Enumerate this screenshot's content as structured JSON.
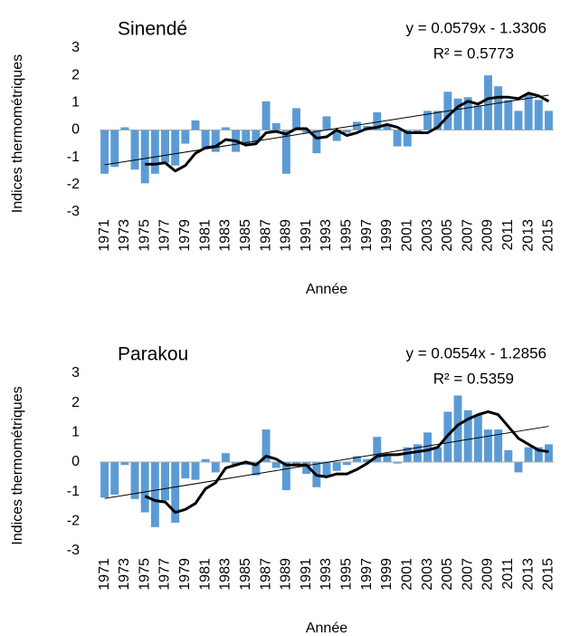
{
  "chart_data": [
    {
      "type": "bar",
      "title": "Sinendé",
      "ylabel": "Indices thermométriques",
      "xlabel": "Année",
      "categories": [
        "1971",
        null,
        "1973",
        null,
        "1975",
        null,
        "1977",
        null,
        "1979",
        null,
        "1981",
        null,
        "1983",
        null,
        "1985",
        null,
        "1987",
        null,
        "1989",
        null,
        "1991",
        null,
        "1993",
        null,
        "1995",
        null,
        "1997",
        null,
        "1999",
        null,
        "2001",
        null,
        "2003",
        null,
        "2005",
        null,
        "2007",
        null,
        "2009",
        null,
        "2011",
        null,
        "2013",
        null,
        "2015"
      ],
      "values": [
        -1.6,
        -1.35,
        0.1,
        -1.45,
        -1.95,
        -1.6,
        -1.2,
        -1.3,
        -0.5,
        0.35,
        -0.65,
        -0.8,
        0.1,
        -0.8,
        -0.5,
        -0.45,
        1.05,
        0.25,
        -1.6,
        0.8,
        -0.1,
        -0.85,
        0.5,
        -0.4,
        -0.1,
        0.3,
        0.15,
        0.65,
        0.15,
        -0.6,
        -0.6,
        -0.1,
        0.7,
        0.7,
        1.4,
        1.15,
        1.2,
        0.9,
        2.0,
        1.6,
        1.1,
        0.7,
        1.3,
        1.1,
        0.7
      ],
      "line_values": [
        null,
        null,
        null,
        null,
        -1.25,
        -1.25,
        -1.2,
        -1.5,
        -1.3,
        -0.85,
        -0.65,
        -0.6,
        -0.35,
        -0.4,
        -0.55,
        -0.5,
        -0.1,
        -0.05,
        -0.15,
        0.05,
        0.05,
        -0.3,
        -0.25,
        0,
        -0.2,
        -0.1,
        0.05,
        0.1,
        0.2,
        0.1,
        -0.1,
        -0.1,
        -0.1,
        0.1,
        0.5,
        0.85,
        1.05,
        0.95,
        1.15,
        1.2,
        1.2,
        1.15,
        1.35,
        1.25,
        1.05
      ],
      "trend": {
        "label": "y = 0.0579x - 1.3306",
        "slope": 0.0579,
        "intercept": -1.3306,
        "r2_label": "R² = 0.5773"
      },
      "color": "#5b9bd5",
      "line_color": "#000000",
      "ylim": [
        -3,
        3
      ],
      "yticks": [
        -3,
        -2,
        -1,
        0,
        1,
        2,
        3
      ]
    },
    {
      "type": "bar",
      "title": "Parakou",
      "ylabel": "Indices thermométriques",
      "xlabel": "Année",
      "categories": [
        "1971",
        null,
        "1973",
        null,
        "1975",
        null,
        "1977",
        null,
        "1979",
        null,
        "1981",
        null,
        "1983",
        null,
        "1985",
        null,
        "1987",
        null,
        "1989",
        null,
        "1991",
        null,
        "1993",
        null,
        "1995",
        null,
        "1997",
        null,
        "1999",
        null,
        "2001",
        null,
        "2003",
        null,
        "2005",
        null,
        "2007",
        null,
        "2009",
        null,
        "2011",
        null,
        "2013",
        null,
        "2015"
      ],
      "values": [
        -1.2,
        -1.1,
        -0.1,
        -1.25,
        -1.7,
        -2.2,
        -1.3,
        -2.05,
        -0.55,
        -0.6,
        0.1,
        -0.35,
        0.3,
        -0.1,
        -0.1,
        -0.45,
        1.1,
        -0.2,
        -0.95,
        -0.1,
        -0.4,
        -0.85,
        -0.45,
        -0.3,
        -0.1,
        0.2,
        0.1,
        0.85,
        0.2,
        -0.05,
        0.5,
        0.6,
        1.0,
        0.5,
        1.7,
        2.25,
        1.75,
        1.6,
        1.1,
        1.1,
        0.4,
        -0.35,
        0.5,
        0.5,
        0.6
      ],
      "line_values": [
        null,
        null,
        null,
        null,
        -1.15,
        -1.3,
        -1.35,
        -1.7,
        -1.6,
        -1.4,
        -0.9,
        -0.7,
        -0.2,
        -0.1,
        0,
        -0.1,
        0.2,
        0.1,
        -0.1,
        -0.1,
        -0.1,
        -0.45,
        -0.5,
        -0.4,
        -0.4,
        -0.25,
        -0.05,
        0.2,
        0.25,
        0.25,
        0.3,
        0.35,
        0.4,
        0.5,
        0.9,
        1.25,
        1.45,
        1.6,
        1.7,
        1.6,
        1.2,
        0.8,
        0.6,
        0.4,
        0.35
      ],
      "trend": {
        "label": "y = 0.0554x - 1.2856",
        "slope": 0.0554,
        "intercept": -1.2856,
        "r2_label": "R² = 0.5359"
      },
      "color": "#5b9bd5",
      "line_color": "#000000",
      "ylim": [
        -3,
        3
      ],
      "yticks": [
        -3,
        -2,
        -1,
        0,
        1,
        2,
        3
      ]
    }
  ]
}
